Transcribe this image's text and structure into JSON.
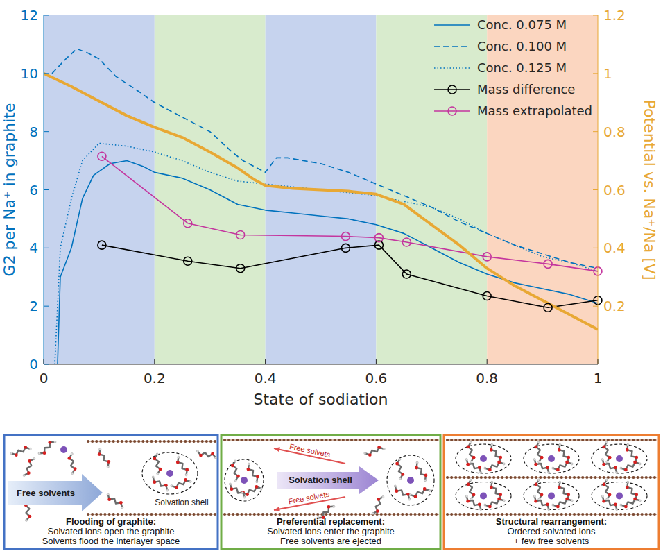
{
  "chart_data": {
    "type": "line",
    "xlabel": "State of sodiation",
    "ylabel": "G2 per Na⁺ in graphite",
    "y2label": "Potential vs. Na⁺/Na [V]",
    "xlim": [
      0,
      1
    ],
    "xticks": [
      0,
      0.2,
      0.4,
      0.6,
      0.8,
      1
    ],
    "ylim": [
      0,
      12
    ],
    "yticks": [
      0,
      2,
      4,
      6,
      8,
      10,
      12
    ],
    "y2lim": [
      0,
      1.2
    ],
    "y2ticks": [
      0.2,
      0.4,
      0.6,
      0.8,
      1,
      1.2
    ],
    "legend": "upper right",
    "regions": [
      {
        "start": 0,
        "end": 0.2,
        "color": "#c6d3ee"
      },
      {
        "start": 0.2,
        "end": 0.4,
        "color": "#d8ebcd"
      },
      {
        "start": 0.4,
        "end": 0.6,
        "color": "#c6d3ee"
      },
      {
        "start": 0.6,
        "end": 0.8,
        "color": "#d8ebcd"
      },
      {
        "start": 0.8,
        "end": 1,
        "color": "#fbd6c0"
      }
    ],
    "series": [
      {
        "name": "Conc. 0.075 M",
        "color": "#0072bd",
        "line_style": "solid",
        "marker": "none",
        "x": [
          0.025,
          0.03,
          0.05,
          0.07,
          0.09,
          0.12,
          0.15,
          0.18,
          0.2,
          0.25,
          0.3,
          0.35,
          0.4,
          0.45,
          0.5,
          0.55,
          0.6,
          0.65,
          0.7,
          0.75,
          0.8,
          0.85,
          0.9,
          0.95,
          1
        ],
        "values": [
          0,
          3,
          4,
          5.7,
          6.5,
          6.9,
          7,
          6.8,
          6.6,
          6.4,
          6,
          5.5,
          5.3,
          5.2,
          5.1,
          5,
          4.8,
          4.5,
          4,
          3.5,
          3.1,
          2.8,
          2.6,
          2.4,
          2.1
        ]
      },
      {
        "name": "Conc. 0.100 M",
        "color": "#0072bd",
        "line_style": "dashed",
        "marker": "none",
        "x": [
          0.015,
          0.04,
          0.06,
          0.08,
          0.1,
          0.13,
          0.17,
          0.2,
          0.25,
          0.3,
          0.34,
          0.36,
          0.38,
          0.4,
          0.42,
          0.44,
          0.5,
          0.55,
          0.6,
          0.65,
          0.7,
          0.75,
          0.8,
          0.85,
          0.9,
          0.95,
          1
        ],
        "values": [
          10,
          10.5,
          10.85,
          10.7,
          10.5,
          9.9,
          9.4,
          9,
          8.5,
          8,
          7.3,
          7,
          6.8,
          6.6,
          7.1,
          7.1,
          6.9,
          6.6,
          6.2,
          5.8,
          5.4,
          4.9,
          4.5,
          4.1,
          3.8,
          3.5,
          3.3
        ]
      },
      {
        "name": "Conc. 0.125 M",
        "color": "#0072bd",
        "line_style": "dotted",
        "marker": "none",
        "x": [
          0.02,
          0.03,
          0.05,
          0.07,
          0.1,
          0.15,
          0.2,
          0.25,
          0.3,
          0.35,
          0.4,
          0.45,
          0.5,
          0.55,
          0.6,
          0.65,
          0.7,
          0.75,
          0.8,
          0.85,
          0.9,
          0.95,
          1
        ],
        "values": [
          0,
          4,
          5.7,
          7,
          7.6,
          7.5,
          7.3,
          7,
          6.6,
          6.3,
          6.2,
          6.1,
          6,
          5.9,
          5.8,
          5.6,
          5.4,
          5,
          4.5,
          4.1,
          3.7,
          3.5,
          3.2
        ]
      },
      {
        "name": "Mass difference",
        "color": "#000000",
        "line_style": "solid",
        "marker": "circle",
        "x": [
          0.105,
          0.26,
          0.355,
          0.545,
          0.605,
          0.655,
          0.8,
          0.91,
          1
        ],
        "values": [
          4.1,
          3.55,
          3.3,
          4,
          4.1,
          3.1,
          2.35,
          1.95,
          2.2
        ]
      },
      {
        "name": "Mass extrapolated",
        "color": "#c4359e",
        "line_style": "solid",
        "marker": "circle",
        "x": [
          0.105,
          0.26,
          0.355,
          0.545,
          0.605,
          0.655,
          0.8,
          0.91,
          1
        ],
        "values": [
          7.15,
          4.85,
          4.45,
          4.4,
          4.35,
          4.2,
          3.7,
          3.45,
          3.2
        ]
      },
      {
        "color": "#e8a834",
        "line_style": "solid",
        "marker": "none",
        "axis": "y2",
        "x": [
          0,
          0.05,
          0.1,
          0.15,
          0.2,
          0.25,
          0.3,
          0.35,
          0.38,
          0.4,
          0.45,
          0.5,
          0.55,
          0.6,
          0.65,
          0.7,
          0.75,
          0.8,
          0.85,
          0.9,
          0.95,
          1
        ],
        "values": [
          1,
          0.955,
          0.905,
          0.855,
          0.815,
          0.78,
          0.73,
          0.675,
          0.635,
          0.615,
          0.605,
          0.6,
          0.595,
          0.585,
          0.55,
          0.48,
          0.41,
          0.33,
          0.27,
          0.22,
          0.17,
          0.12
        ]
      }
    ]
  },
  "panels": [
    {
      "color": "#4472c4",
      "title": "Flooding of graphite:",
      "lines": [
        "Solvated ions open the graphite",
        "Solvents flood the interlayer space"
      ],
      "arrow_label": "Free solvents",
      "shell_label": "Solvation shell"
    },
    {
      "color": "#70ad47",
      "title": "Preferential replacement:",
      "lines": [
        "Solvated ions enter the graphite",
        "Free solvents are ejected"
      ],
      "arrow_label": "Solvation shell",
      "side_labels": [
        "Free solvets",
        "Free solvets"
      ]
    },
    {
      "color": "#ed7d31",
      "title": "Structural rearrangement:",
      "lines": [
        "Ordered solvated ions",
        "+ few free solvents"
      ]
    }
  ]
}
